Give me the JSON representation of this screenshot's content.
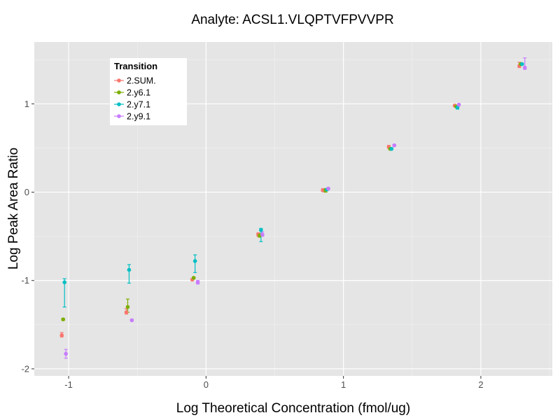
{
  "chart_data": {
    "type": "scatter",
    "title": "Analyte: ACSL1.VLQPTVFPVVPR",
    "xlabel": "Log Theoretical Concentration (fmol/ug)",
    "ylabel": "Log Peak Area Ratio",
    "xlim": [
      -1.25,
      2.52
    ],
    "ylim": [
      -2.08,
      1.7
    ],
    "x_ticks": [
      -1,
      0,
      1,
      2
    ],
    "y_ticks": [
      -2,
      -1,
      0,
      1
    ],
    "x_tick_labels": [
      "-1",
      "0",
      "1",
      "2"
    ],
    "y_tick_labels": [
      "-2",
      "-1",
      "0",
      "1"
    ],
    "grid": true,
    "legend": {
      "title": "Transition",
      "position": "top-left"
    },
    "series": [
      {
        "name": "2.SUM.",
        "color": "#F8766D",
        "points": [
          {
            "x": -1.05,
            "y": -1.62,
            "lo": -1.64,
            "hi": -1.59
          },
          {
            "x": -0.58,
            "y": -1.36,
            "lo": -1.38,
            "hi": -1.32
          },
          {
            "x": -0.1,
            "y": -0.99,
            "lo": -1.0,
            "hi": -0.98
          },
          {
            "x": 0.38,
            "y": -0.48,
            "lo": -0.5,
            "hi": -0.46
          },
          {
            "x": 0.85,
            "y": 0.02,
            "lo": 0.01,
            "hi": 0.04
          },
          {
            "x": 1.33,
            "y": 0.51,
            "lo": 0.5,
            "hi": 0.53
          },
          {
            "x": 1.81,
            "y": 0.98,
            "lo": 0.97,
            "hi": 0.99
          },
          {
            "x": 2.28,
            "y": 1.43,
            "lo": 1.41,
            "hi": 1.47
          }
        ]
      },
      {
        "name": "2.y6.1",
        "color": "#7CAE00",
        "points": [
          {
            "x": -1.04,
            "y": -1.44,
            "lo": -1.45,
            "hi": -1.43
          },
          {
            "x": -0.57,
            "y": -1.3,
            "lo": -1.36,
            "hi": -1.21
          },
          {
            "x": -0.09,
            "y": -0.97,
            "lo": -0.98,
            "hi": -0.96
          },
          {
            "x": 0.39,
            "y": -0.49,
            "lo": -0.51,
            "hi": -0.47
          },
          {
            "x": 0.87,
            "y": 0.02,
            "lo": 0.0,
            "hi": 0.04
          },
          {
            "x": 1.34,
            "y": 0.49,
            "lo": 0.48,
            "hi": 0.5
          },
          {
            "x": 1.82,
            "y": 0.97,
            "lo": 0.96,
            "hi": 0.98
          },
          {
            "x": 2.29,
            "y": 1.45,
            "lo": 1.44,
            "hi": 1.46
          }
        ]
      },
      {
        "name": "2.y7.1",
        "color": "#00BFC4",
        "points": [
          {
            "x": -1.03,
            "y": -1.02,
            "lo": -1.3,
            "hi": -0.98
          },
          {
            "x": -0.56,
            "y": -0.88,
            "lo": -1.03,
            "hi": -0.82
          },
          {
            "x": -0.08,
            "y": -0.78,
            "lo": -0.91,
            "hi": -0.71
          },
          {
            "x": 0.4,
            "y": -0.43,
            "lo": -0.56,
            "hi": -0.41
          },
          {
            "x": 0.88,
            "y": 0.03,
            "lo": 0.02,
            "hi": 0.04
          },
          {
            "x": 1.35,
            "y": 0.49,
            "lo": 0.48,
            "hi": 0.5
          },
          {
            "x": 1.83,
            "y": 0.96,
            "lo": 0.94,
            "hi": 0.98
          },
          {
            "x": 2.3,
            "y": 1.45,
            "lo": 1.44,
            "hi": 1.46
          }
        ]
      },
      {
        "name": "2.y9.1",
        "color": "#C77CFF",
        "points": [
          {
            "x": -1.02,
            "y": -1.83,
            "lo": -1.88,
            "hi": -1.78
          },
          {
            "x": -0.54,
            "y": -1.45,
            "lo": -1.46,
            "hi": -1.44
          },
          {
            "x": -0.06,
            "y": -1.02,
            "lo": -1.04,
            "hi": -1.0
          },
          {
            "x": 0.41,
            "y": -0.48,
            "lo": -0.5,
            "hi": -0.45
          },
          {
            "x": 0.89,
            "y": 0.04,
            "lo": 0.03,
            "hi": 0.05
          },
          {
            "x": 1.37,
            "y": 0.53,
            "lo": 0.52,
            "hi": 0.54
          },
          {
            "x": 1.84,
            "y": 0.99,
            "lo": 0.98,
            "hi": 1.0
          },
          {
            "x": 2.32,
            "y": 1.41,
            "lo": 1.39,
            "hi": 1.52
          }
        ]
      }
    ]
  }
}
